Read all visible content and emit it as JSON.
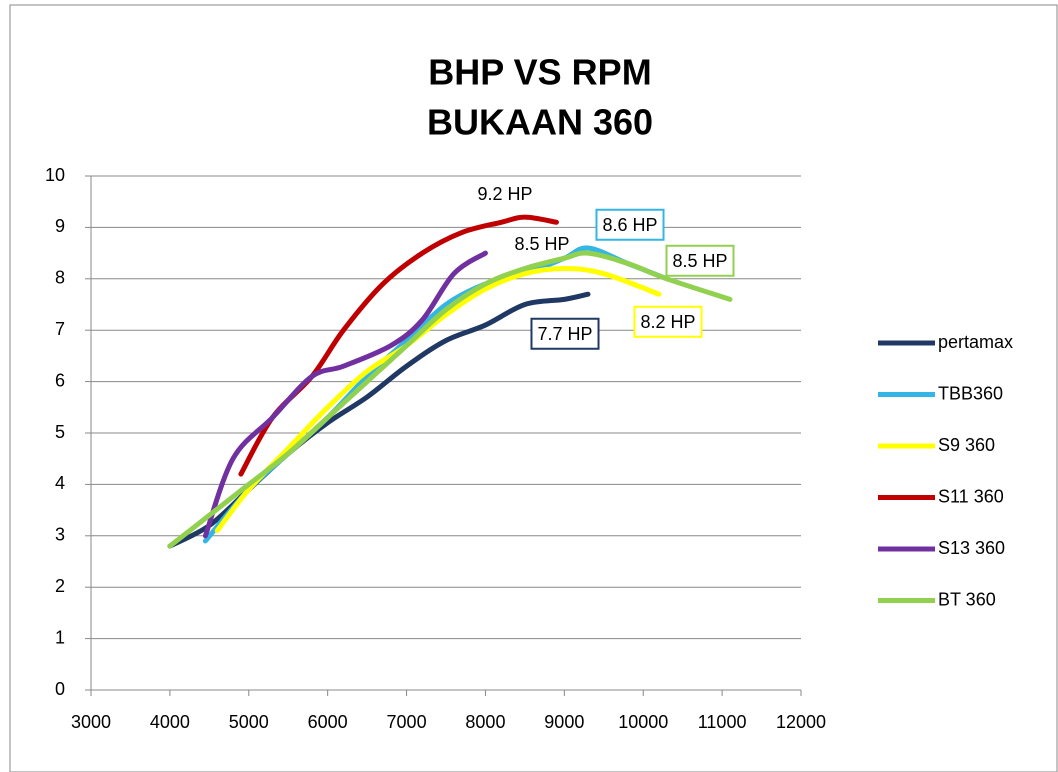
{
  "chart_data": {
    "type": "line",
    "title": "BHP VS RPM",
    "subtitle": "BUKAAN 360",
    "xlim": [
      3000,
      12000
    ],
    "xticks": [
      3000,
      4000,
      5000,
      6000,
      7000,
      8000,
      9000,
      10000,
      11000,
      12000
    ],
    "ylim": [
      0,
      10
    ],
    "yticks": [
      0,
      1,
      2,
      3,
      4,
      5,
      6,
      7,
      8,
      9,
      10
    ],
    "grid": true,
    "legend": "right",
    "series": [
      {
        "name": "pertamax",
        "color": "#1f3864",
        "x": [
          4000,
          4500,
          5000,
          5500,
          6000,
          6500,
          7000,
          7500,
          8000,
          8500,
          9000,
          9300
        ],
        "values": [
          2.8,
          3.2,
          3.9,
          4.6,
          5.2,
          5.7,
          6.3,
          6.8,
          7.1,
          7.5,
          7.6,
          7.7
        ]
      },
      {
        "name": "TBB360",
        "color": "#33b5e5",
        "x": [
          4450,
          5000,
          5500,
          6000,
          6500,
          7000,
          7500,
          8000,
          8500,
          9000,
          9300,
          9800,
          10300
        ],
        "values": [
          2.9,
          3.9,
          4.6,
          5.3,
          6.1,
          6.8,
          7.5,
          7.9,
          8.1,
          8.4,
          8.6,
          8.3,
          8.0
        ]
      },
      {
        "name": "S9 360",
        "color": "#ffff00",
        "x": [
          4600,
          5000,
          5500,
          6000,
          6500,
          7000,
          7500,
          8000,
          8500,
          9000,
          9500,
          10200
        ],
        "values": [
          3.1,
          3.9,
          4.7,
          5.5,
          6.2,
          6.7,
          7.3,
          7.8,
          8.1,
          8.2,
          8.1,
          7.7
        ]
      },
      {
        "name": "S11 360",
        "color": "#c00000",
        "x": [
          4900,
          5300,
          5800,
          6200,
          6700,
          7200,
          7700,
          8200,
          8500,
          8900
        ],
        "values": [
          4.2,
          5.3,
          6.1,
          7.0,
          7.9,
          8.5,
          8.9,
          9.1,
          9.2,
          9.1
        ]
      },
      {
        "name": "S13 360",
        "color": "#7030a0",
        "x": [
          4450,
          4800,
          5300,
          5800,
          6200,
          6800,
          7200,
          7600,
          8000
        ],
        "values": [
          3.0,
          4.5,
          5.3,
          6.1,
          6.3,
          6.7,
          7.2,
          8.1,
          8.5
        ]
      },
      {
        "name": "BT 360",
        "color": "#92d050",
        "x": [
          4000,
          4500,
          5000,
          5500,
          6000,
          6500,
          7000,
          7500,
          8000,
          8500,
          9000,
          9300,
          9800,
          10300,
          11100
        ],
        "values": [
          2.8,
          3.4,
          4.0,
          4.6,
          5.3,
          6.0,
          6.7,
          7.4,
          7.9,
          8.2,
          8.4,
          8.5,
          8.3,
          8.0,
          7.6
        ]
      }
    ],
    "annotations": [
      {
        "text": "9.2 HP"
      },
      {
        "text": "8.6 HP",
        "color": "#33b5e5"
      },
      {
        "text": "8.5 HP"
      },
      {
        "text": "8.5 HP",
        "color": "#92d050"
      },
      {
        "text": "7.7 HP",
        "color": "#1f3864"
      },
      {
        "text": "8.2 HP",
        "color": "#ffff00"
      }
    ]
  }
}
